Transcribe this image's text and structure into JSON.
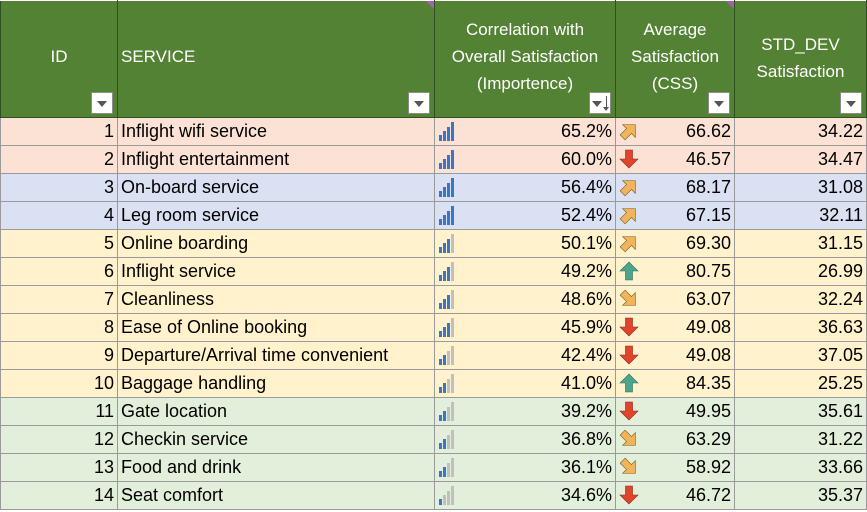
{
  "header": {
    "id": "ID",
    "service": "SERVICE",
    "correlation_line1": "Correlation with",
    "correlation_line2": "Overall Satisfaction",
    "correlation_line3": "(Importence)",
    "avg_line1": "Average",
    "avg_line2": "Satisfaction",
    "avg_line3": "(CSS)",
    "std_line1": "STD_DEV",
    "std_line2": "Satisfaction"
  },
  "colors": {
    "header_bg": "#548235",
    "salmon": "#fbe2d5",
    "blue": "#d9e1f2",
    "yellow": "#fff2cc",
    "green": "#e2efda",
    "bar_on": "#3a76c4",
    "bar_off": "#c0c0c0",
    "arrow_down": "#e1442a",
    "arrow_up": "#4ca58a",
    "arrow_diag": "#f2b45b"
  },
  "rows": [
    {
      "id": "1",
      "service": "Inflight wifi service",
      "correlation": "65.2%",
      "bars": 4,
      "trend": "diagonal-up",
      "avg": "66.62",
      "std": "34.22",
      "band": "salmon"
    },
    {
      "id": "2",
      "service": "Inflight entertainment",
      "correlation": "60.0%",
      "bars": 4,
      "trend": "down",
      "avg": "46.57",
      "std": "34.47",
      "band": "salmon"
    },
    {
      "id": "3",
      "service": "On-board service",
      "correlation": "56.4%",
      "bars": 4,
      "trend": "diagonal-up",
      "avg": "68.17",
      "std": "31.08",
      "band": "blue"
    },
    {
      "id": "4",
      "service": "Leg room service",
      "correlation": "52.4%",
      "bars": 4,
      "trend": "diagonal-up",
      "avg": "67.15",
      "std": "32.11",
      "band": "blue"
    },
    {
      "id": "5",
      "service": "Online boarding",
      "correlation": "50.1%",
      "bars": 3,
      "trend": "diagonal-up",
      "avg": "69.30",
      "std": "31.15",
      "band": "yellow"
    },
    {
      "id": "6",
      "service": "Inflight service",
      "correlation": "49.2%",
      "bars": 3,
      "trend": "up",
      "avg": "80.75",
      "std": "26.99",
      "band": "yellow"
    },
    {
      "id": "7",
      "service": "Cleanliness",
      "correlation": "48.6%",
      "bars": 3,
      "trend": "diagonal-down",
      "avg": "63.07",
      "std": "32.24",
      "band": "yellow"
    },
    {
      "id": "8",
      "service": "Ease of Online booking",
      "correlation": "45.9%",
      "bars": 3,
      "trend": "down",
      "avg": "49.08",
      "std": "36.63",
      "band": "yellow"
    },
    {
      "id": "9",
      "service": "Departure/Arrival time convenient",
      "correlation": "42.4%",
      "bars": 2,
      "trend": "down",
      "avg": "49.08",
      "std": "37.05",
      "band": "yellow"
    },
    {
      "id": "10",
      "service": "Baggage handling",
      "correlation": "41.0%",
      "bars": 2,
      "trend": "up",
      "avg": "84.35",
      "std": "25.25",
      "band": "yellow"
    },
    {
      "id": "11",
      "service": "Gate location",
      "correlation": "39.2%",
      "bars": 2,
      "trend": "down",
      "avg": "49.95",
      "std": "35.61",
      "band": "green"
    },
    {
      "id": "12",
      "service": "Checkin service",
      "correlation": "36.8%",
      "bars": 2,
      "trend": "diagonal-down",
      "avg": "63.29",
      "std": "31.22",
      "band": "green"
    },
    {
      "id": "13",
      "service": "Food and drink",
      "correlation": "36.1%",
      "bars": 2,
      "trend": "diagonal-down",
      "avg": "58.92",
      "std": "33.66",
      "band": "green"
    },
    {
      "id": "14",
      "service": "Seat comfort",
      "correlation": "34.6%",
      "bars": 1,
      "trend": "down",
      "avg": "46.72",
      "std": "35.37",
      "band": "green"
    }
  ]
}
